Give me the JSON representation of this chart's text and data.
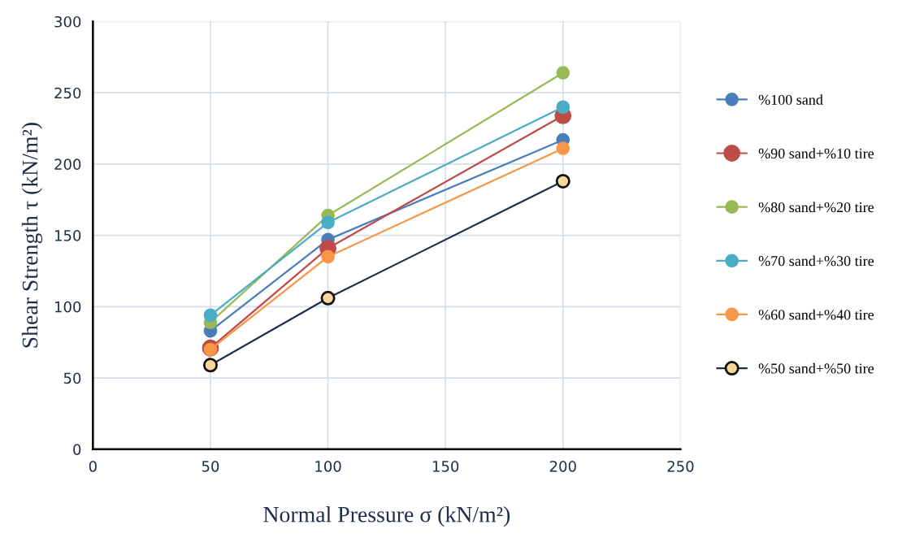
{
  "chart_data": {
    "type": "line",
    "xlabel": "Normal Pressure σ (kN/m²)",
    "ylabel": "Shear Strength τ (kN/m²)",
    "x": [
      50,
      100,
      200
    ],
    "series": [
      {
        "name": "%100 sand",
        "color": "#4a7ebb",
        "values": [
          83,
          147,
          217
        ]
      },
      {
        "name": "%90 sand+%10 tire",
        "color": "#be4b48",
        "values": [
          71,
          141,
          234
        ]
      },
      {
        "name": "%80 sand+%20 tire",
        "color": "#98b954",
        "values": [
          89,
          164,
          264
        ]
      },
      {
        "name": "%70 sand+%30 tire",
        "color": "#4bacc6",
        "values": [
          94,
          159,
          240
        ]
      },
      {
        "name": "%60 sand+%40 tire",
        "color": "#f79646",
        "values": [
          70,
          135,
          211
        ]
      },
      {
        "name": "%50 sand+%50 tire",
        "color": "#1f2f4a",
        "values": [
          59,
          106,
          188
        ]
      }
    ],
    "xlim": [
      0,
      250
    ],
    "xticks": [
      0,
      50,
      100,
      150,
      200,
      250
    ],
    "ylim": [
      0,
      300
    ],
    "yticks": [
      0,
      50,
      100,
      150,
      200,
      250,
      300
    ],
    "grid": true,
    "legend": "right",
    "marker": "circle",
    "line_style": "solid"
  }
}
